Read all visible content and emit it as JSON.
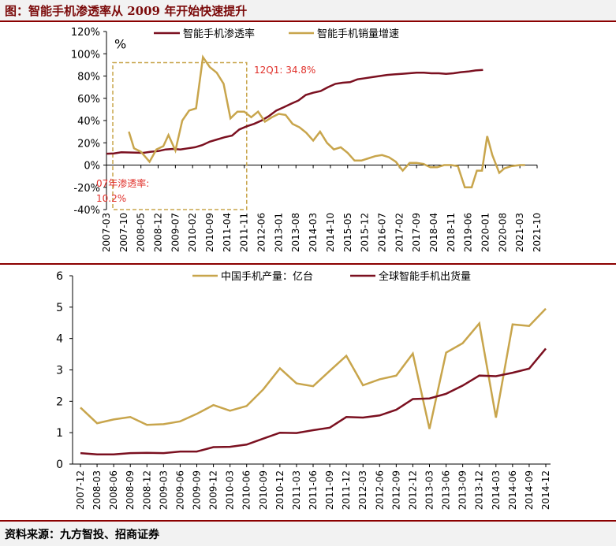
{
  "header": {
    "title": "图：智能手机渗透率从 2009 年开始快速提升"
  },
  "footer": {
    "source": "资料来源：九方智投、招商证券"
  },
  "colors": {
    "dark_red": "#7b1020",
    "gold": "#c8a54c",
    "annotation_red": "#e0302a",
    "frame": "#8b0000"
  },
  "chart_data": [
    {
      "type": "line",
      "title": "",
      "unit_label": "%",
      "ylim": [
        -40,
        120
      ],
      "y_ticks": [
        -40,
        -20,
        0,
        20,
        40,
        60,
        80,
        100,
        120
      ],
      "y_tick_labels": [
        "-40%",
        "-20%",
        "0%",
        "20%",
        "40%",
        "60%",
        "80%",
        "100%",
        "120%"
      ],
      "x_tick_labels": [
        "2007-03",
        "2007-10",
        "2008-05",
        "2008-12",
        "2009-07",
        "2010-02",
        "2010-09",
        "2011-04",
        "2011-11",
        "2012-06",
        "2013-01",
        "2013-08",
        "2014-03",
        "2014-10",
        "2015-05",
        "2015-12",
        "2016-07",
        "2017-02",
        "2017-09",
        "2018-04",
        "2018-11",
        "2019-06",
        "2020-01",
        "2020-08",
        "2021-03",
        "2021-10"
      ],
      "legend": [
        "智能手机渗透率",
        "智能手机销量增速"
      ],
      "legend_position": "top",
      "series": [
        {
          "name": "智能手机渗透率",
          "color": "#7b1020",
          "x": [
            0,
            0.43,
            0.86,
            1.29,
            1.71,
            2.14,
            2.57,
            3.0,
            3.43,
            3.86,
            4.29,
            4.71,
            5.14,
            5.57,
            6.0,
            6.43,
            6.86,
            7.29,
            7.71,
            8.14,
            8.57,
            9.0,
            9.43,
            9.86,
            10.29,
            10.71,
            11.14,
            11.57,
            12.0,
            12.43,
            12.86,
            13.29,
            13.71,
            14.14,
            14.57,
            15.0,
            15.43,
            15.86,
            16.29,
            16.71,
            17.14,
            17.57,
            18.0,
            18.43,
            18.86,
            19.29,
            19.71,
            20.14,
            20.57,
            21.0,
            21.43,
            21.86
          ],
          "values": [
            10.2,
            10.5,
            11.5,
            11.3,
            11.2,
            11.0,
            12.0,
            12.5,
            14.0,
            14.5,
            14.0,
            15.0,
            16.0,
            18.0,
            21.0,
            23.0,
            25.0,
            26.5,
            32.0,
            34.8,
            37.0,
            40.0,
            44.0,
            49.0,
            52.0,
            55.0,
            58.0,
            63.0,
            65.0,
            66.5,
            70.0,
            73.0,
            74.0,
            74.5,
            77.0,
            78.0,
            79.0,
            80.0,
            81.0,
            81.5,
            82.0,
            82.5,
            83.0,
            83.0,
            82.5,
            82.5,
            82.0,
            82.5,
            83.5,
            84.0,
            85.0,
            85.5
          ]
        },
        {
          "name": "智能手机销量增速",
          "color": "#c8a54c",
          "segments": [
            {
              "x": [
                1.3,
                1.6,
                2.0,
                2.5,
                2.9,
                3.3,
                3.6,
                4.0,
                4.4,
                4.8,
                5.2,
                5.6,
                6.0,
                6.4,
                6.8,
                7.2,
                7.6,
                8.0,
                8.4,
                8.8,
                9.2,
                9.6,
                10.0,
                10.4,
                10.8,
                11.2,
                11.6,
                12.0,
                12.4,
                12.8,
                13.2,
                13.6,
                14.0,
                14.4,
                14.8,
                15.2,
                15.6,
                16.0,
                16.4,
                16.8,
                17.2,
                17.6,
                18.0,
                18.4,
                18.8,
                19.2,
                19.6,
                20.0,
                20.4,
                20.8,
                21.2,
                21.5,
                21.8,
                22.1,
                22.4,
                22.8,
                23.1,
                23.5,
                24.0,
                24.3
              ],
              "values": [
                30,
                15,
                12,
                3,
                14,
                17,
                27,
                13,
                40,
                49,
                51,
                97,
                88,
                83,
                73,
                42,
                48,
                48,
                43,
                48,
                39,
                43,
                46,
                45,
                37,
                34,
                29,
                22,
                30,
                20,
                14,
                16,
                11,
                4,
                4,
                6,
                8,
                9,
                7,
                3,
                -5,
                2,
                2,
                1,
                -2,
                -2,
                0,
                0,
                -1,
                -20,
                -20,
                -5,
                -5,
                26,
                9,
                -7,
                -3,
                -1,
                0,
                0
              ]
            }
          ]
        }
      ],
      "annotations": [
        {
          "text": "12Q1: 34.8%",
          "color": "#e0302a"
        },
        {
          "text": "07年渗透率:",
          "color": "#e0302a"
        },
        {
          "text": "10.2%",
          "color": "#e0302a"
        }
      ],
      "highlight_box": {
        "x_from": 0,
        "x_to": 8.14,
        "y_from": -40,
        "y_to": 92
      },
      "grid": false
    },
    {
      "type": "line",
      "title": "",
      "ylim": [
        0,
        6
      ],
      "y_ticks": [
        0,
        1,
        2,
        3,
        4,
        5,
        6
      ],
      "y_tick_labels": [
        "0",
        "1",
        "2",
        "3",
        "4",
        "5",
        "6"
      ],
      "categories": [
        "2007-12",
        "2008-03",
        "2008-06",
        "2008-09",
        "2008-12",
        "2009-03",
        "2009-06",
        "2009-09",
        "2009-12",
        "2010-03",
        "2010-06",
        "2010-09",
        "2010-12",
        "2011-03",
        "2011-06",
        "2011-09",
        "2011-12",
        "2012-03",
        "2012-06",
        "2012-09",
        "2012-12",
        "2013-03",
        "2013-06",
        "2013-09",
        "2013-12",
        "2014-03",
        "2014-06",
        "2014-09",
        "2014-12"
      ],
      "legend": [
        "中国手机产量：亿台",
        "全球智能手机出货量"
      ],
      "legend_position": "top",
      "series": [
        {
          "name": "中国手机产量：亿台",
          "color": "#c8a54c",
          "values": [
            1.8,
            1.3,
            1.42,
            1.5,
            1.25,
            1.27,
            1.36,
            1.6,
            1.88,
            1.7,
            1.85,
            2.38,
            3.05,
            2.57,
            2.48,
            2.97,
            3.45,
            2.51,
            2.7,
            2.82,
            3.52,
            1.12,
            3.55,
            3.85,
            4.48,
            1.48,
            4.45,
            4.4,
            4.95
          ]
        },
        {
          "name": "全球智能手机出货量",
          "color": "#7b1020",
          "values": [
            0.35,
            0.31,
            0.31,
            0.35,
            0.36,
            0.35,
            0.4,
            0.4,
            0.54,
            0.55,
            0.62,
            0.81,
            1.0,
            0.99,
            1.08,
            1.16,
            1.5,
            1.48,
            1.55,
            1.73,
            2.07,
            2.09,
            2.24,
            2.5,
            2.82,
            2.8,
            2.91,
            3.04,
            3.68
          ]
        }
      ],
      "grid": false
    }
  ]
}
